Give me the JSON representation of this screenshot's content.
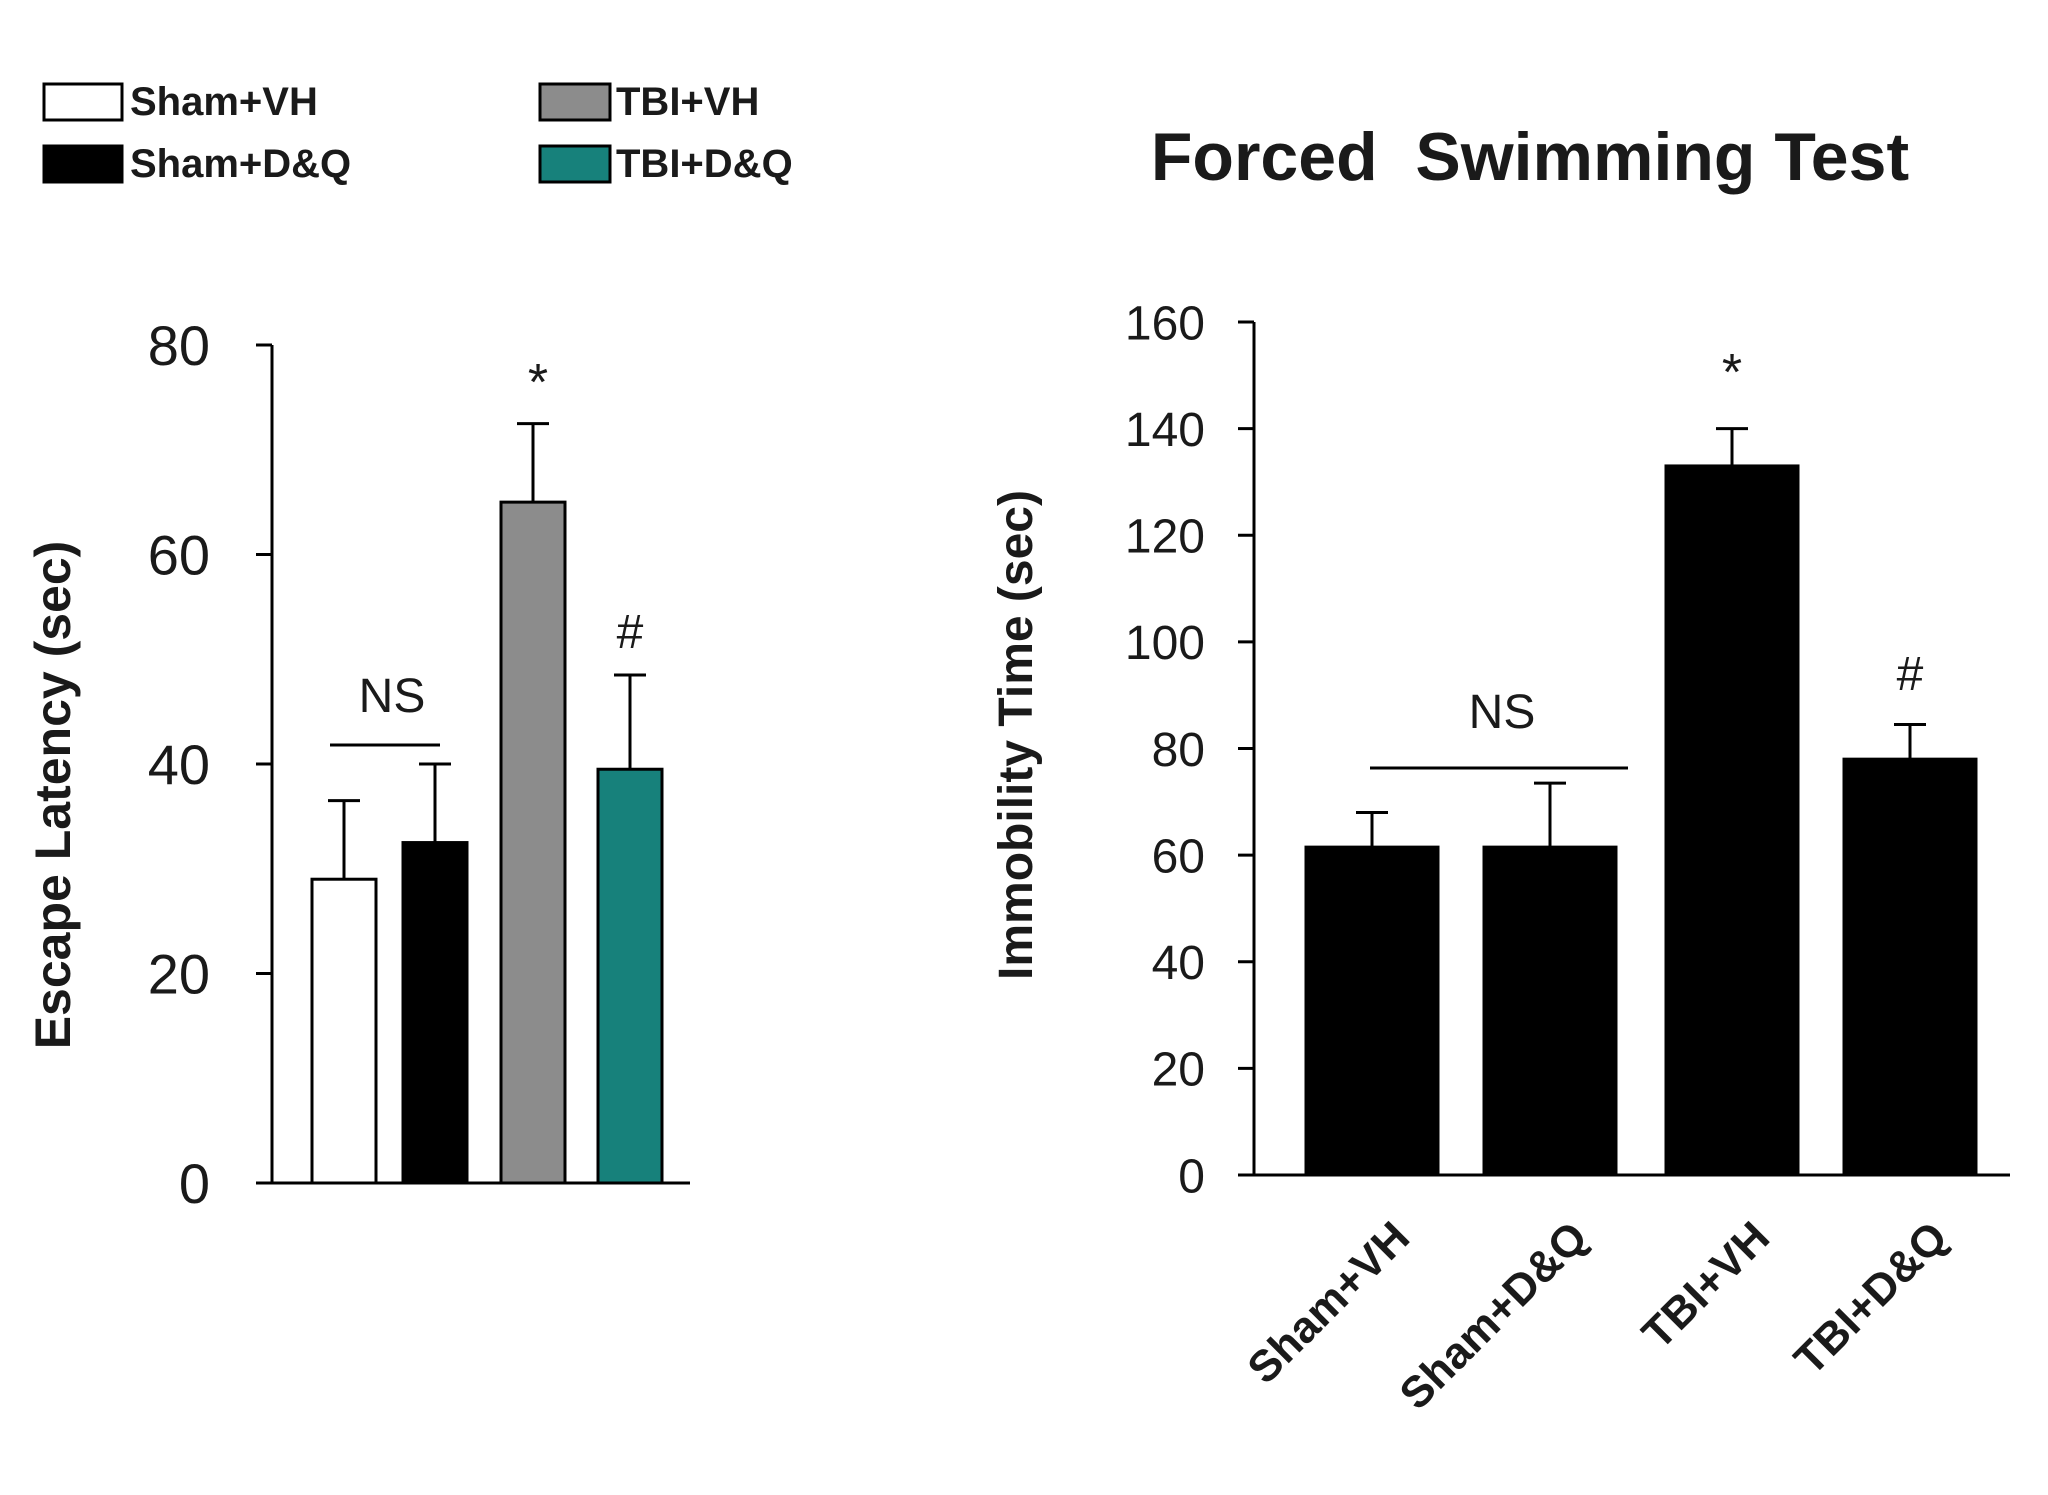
{
  "colors": {
    "sham_vh": "#ffffff",
    "sham_dq": "#000000",
    "tbi_vh": "#8c8c8c",
    "tbi_dq": "#17817b",
    "axis": "#000000",
    "text": "#1a1a1a"
  },
  "legend": {
    "items": [
      {
        "label": "Sham+VH",
        "color": "#ffffff"
      },
      {
        "label": "TBI+VH",
        "color": "#8c8c8c"
      },
      {
        "label": "Sham+D&Q",
        "color": "#000000"
      },
      {
        "label": "TBI+D&Q",
        "color": "#17817b"
      }
    ]
  },
  "chart_data": [
    {
      "type": "bar",
      "title": "",
      "ylabel": "Escape Latency (sec)",
      "xlabel": "",
      "ylim": [
        0,
        80
      ],
      "yticks": [
        0,
        20,
        40,
        60,
        80
      ],
      "categories": [
        "Sham+VH",
        "Sham+D&Q",
        "TBI+VH",
        "TBI+D&Q"
      ],
      "values": [
        29,
        32.5,
        65,
        39.5
      ],
      "errors": [
        7.5,
        7.5,
        7.5,
        9
      ],
      "bar_colors": [
        "#ffffff",
        "#000000",
        "#8c8c8c",
        "#17817b"
      ],
      "annotations": {
        "ns_label": "NS",
        "ns_span": [
          0,
          1
        ],
        "marks": [
          {
            "category": 2,
            "text": "*"
          },
          {
            "category": 3,
            "text": "#"
          }
        ]
      }
    },
    {
      "type": "bar",
      "title": "Forced  Swimming Test",
      "ylabel": "Immobility Time (sec)",
      "xlabel": "",
      "ylim": [
        0,
        160
      ],
      "yticks": [
        0,
        20,
        40,
        60,
        80,
        100,
        120,
        140,
        160
      ],
      "categories": [
        "Sham+VH",
        "Sham+D&Q",
        "TBI+VH",
        "TBI+D&Q"
      ],
      "values": [
        61.5,
        61.5,
        133,
        78
      ],
      "errors": [
        6.5,
        12,
        7,
        6.5
      ],
      "bar_colors": [
        "#000000",
        "#000000",
        "#000000",
        "#000000"
      ],
      "annotations": {
        "ns_label": "NS",
        "ns_span": [
          0,
          1
        ],
        "marks": [
          {
            "category": 2,
            "text": "*"
          },
          {
            "category": 3,
            "text": "#"
          }
        ]
      }
    }
  ]
}
